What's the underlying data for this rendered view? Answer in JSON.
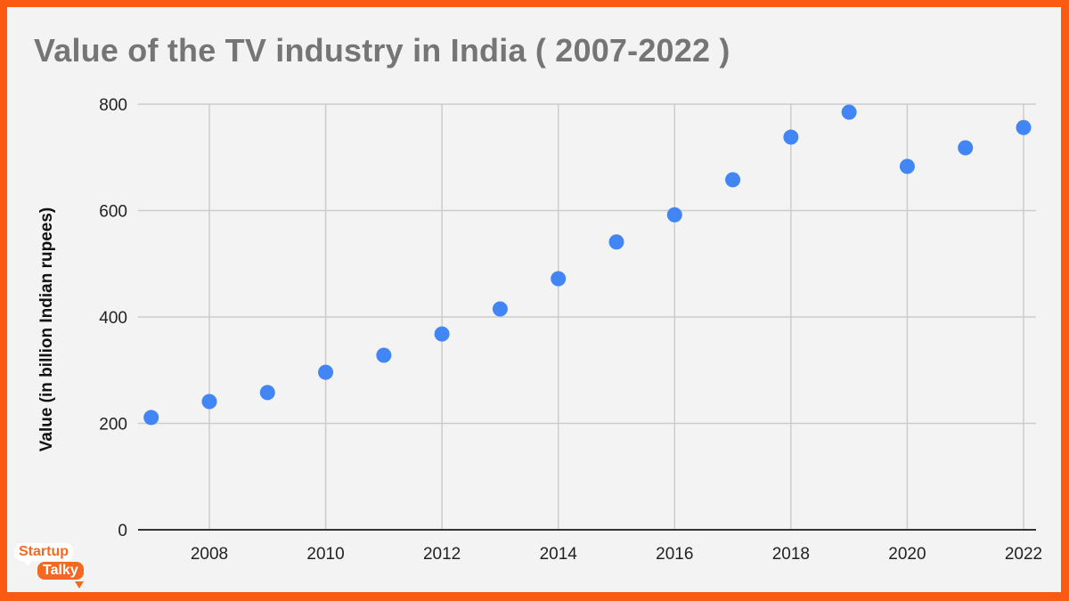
{
  "chart_data": {
    "type": "scatter",
    "title": "Value of the TV industry in India ( 2007-2022 )",
    "xlabel": "",
    "ylabel": "Value (in billion Indian rupees)",
    "x": [
      2007,
      2008,
      2009,
      2010,
      2011,
      2012,
      2013,
      2014,
      2015,
      2016,
      2017,
      2018,
      2019,
      2020,
      2021,
      2022
    ],
    "series": [
      {
        "name": "Value",
        "values": [
          211,
          241,
          258,
          296,
          328,
          368,
          415,
          472,
          541,
          592,
          658,
          738,
          785,
          683,
          718,
          756
        ],
        "color": "#4285f4"
      }
    ],
    "xlim": [
      2007,
      2022
    ],
    "ylim": [
      0,
      800
    ],
    "x_ticks": [
      "2008",
      "2010",
      "2012",
      "2014",
      "2016",
      "2018",
      "2020",
      "2022"
    ],
    "y_ticks": [
      "0",
      "200",
      "400",
      "600",
      "800"
    ],
    "grid": true,
    "legend": "none"
  },
  "branding": {
    "logo_line1": "Startup",
    "logo_line2": "Talky",
    "frame_color": "#fa5a12"
  }
}
